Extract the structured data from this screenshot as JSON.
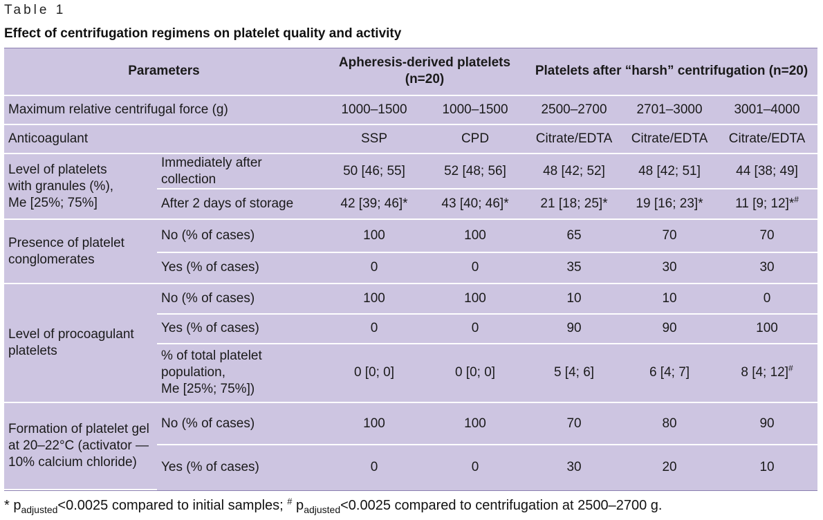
{
  "table_label": "Table 1",
  "title": "Effect of centrifugation regimens on platelet quality and activity",
  "header": {
    "parameters": "Parameters",
    "apheresis": "Apheresis-derived platelets (n=20)",
    "harsh": "Platelets after “harsh” centrifugation (n=20)"
  },
  "rcf": {
    "label": "Maximum relative centrifugal force (g)",
    "values": [
      "1000–1500",
      "1000–1500",
      "2500–2700",
      "2701–3000",
      "3001–4000"
    ]
  },
  "anticoagulant": {
    "label": "Anticoagulant",
    "values": [
      "SSP",
      "CPD",
      "Citrate/EDTA",
      "Citrate/EDTA",
      "Citrate/EDTA"
    ]
  },
  "granules": {
    "label_line1": "Level of platelets",
    "label_line2": "with granules (%),",
    "label_line3": "Me [25%; 75%]",
    "rows": [
      {
        "label": "Immediately after collection",
        "values": [
          "50 [46; 55]",
          "52 [48; 56]",
          "48 [42; 52]",
          "48 [42; 51]",
          "44 [38; 49]"
        ]
      },
      {
        "label": "After 2 days of storage",
        "values": [
          "42 [39; 46]*",
          "43 [40; 46]*",
          "21 [18; 25]*",
          "19 [16; 23]*",
          "11 [9; 12]*"
        ],
        "last_mark": "#"
      }
    ]
  },
  "conglomerates": {
    "label_line1": "Presence of platelet",
    "label_line2": "conglomerates",
    "rows": [
      {
        "label": "No (% of cases)",
        "values": [
          "100",
          "100",
          "65",
          "70",
          "70"
        ]
      },
      {
        "label": "Yes (% of cases)",
        "values": [
          "0",
          "0",
          "35",
          "30",
          "30"
        ]
      }
    ]
  },
  "procoagulant": {
    "label_line1": "Level of procoagulant",
    "label_line2": "platelets",
    "rows": [
      {
        "label": "No (% of cases)",
        "values": [
          "100",
          "100",
          "10",
          "10",
          "0"
        ]
      },
      {
        "label": "Yes (% of cases)",
        "values": [
          "0",
          "0",
          "90",
          "90",
          "100"
        ]
      }
    ],
    "total": {
      "label_line1": "% of total platelet",
      "label_line2": "population,",
      "label_line3": "Me [25%; 75%])",
      "values": [
        "0 [0; 0]",
        "0 [0; 0]",
        "5 [4; 6]",
        "6 [4; 7]",
        "8 [4; 12]"
      ],
      "last_mark": "#"
    }
  },
  "gel": {
    "label_line1": "Formation of platelet gel",
    "label_line2": "at 20–22°C (activator —",
    "label_line3": "10% calcium chloride)",
    "rows": [
      {
        "label": "No (% of cases)",
        "values": [
          "100",
          "100",
          "70",
          "80",
          "90"
        ]
      },
      {
        "label": "Yes (% of cases)",
        "values": [
          "0",
          "0",
          "30",
          "20",
          "10"
        ]
      }
    ]
  },
  "footnote": {
    "star": "* p",
    "adj1": "adjusted",
    "text1": "<0.0025 compared to initial samples; ",
    "hash": "#",
    "p2": " p",
    "adj2": "adjusted",
    "text2": "<0.0025 compared to centrifugation at 2500–2700 g."
  }
}
